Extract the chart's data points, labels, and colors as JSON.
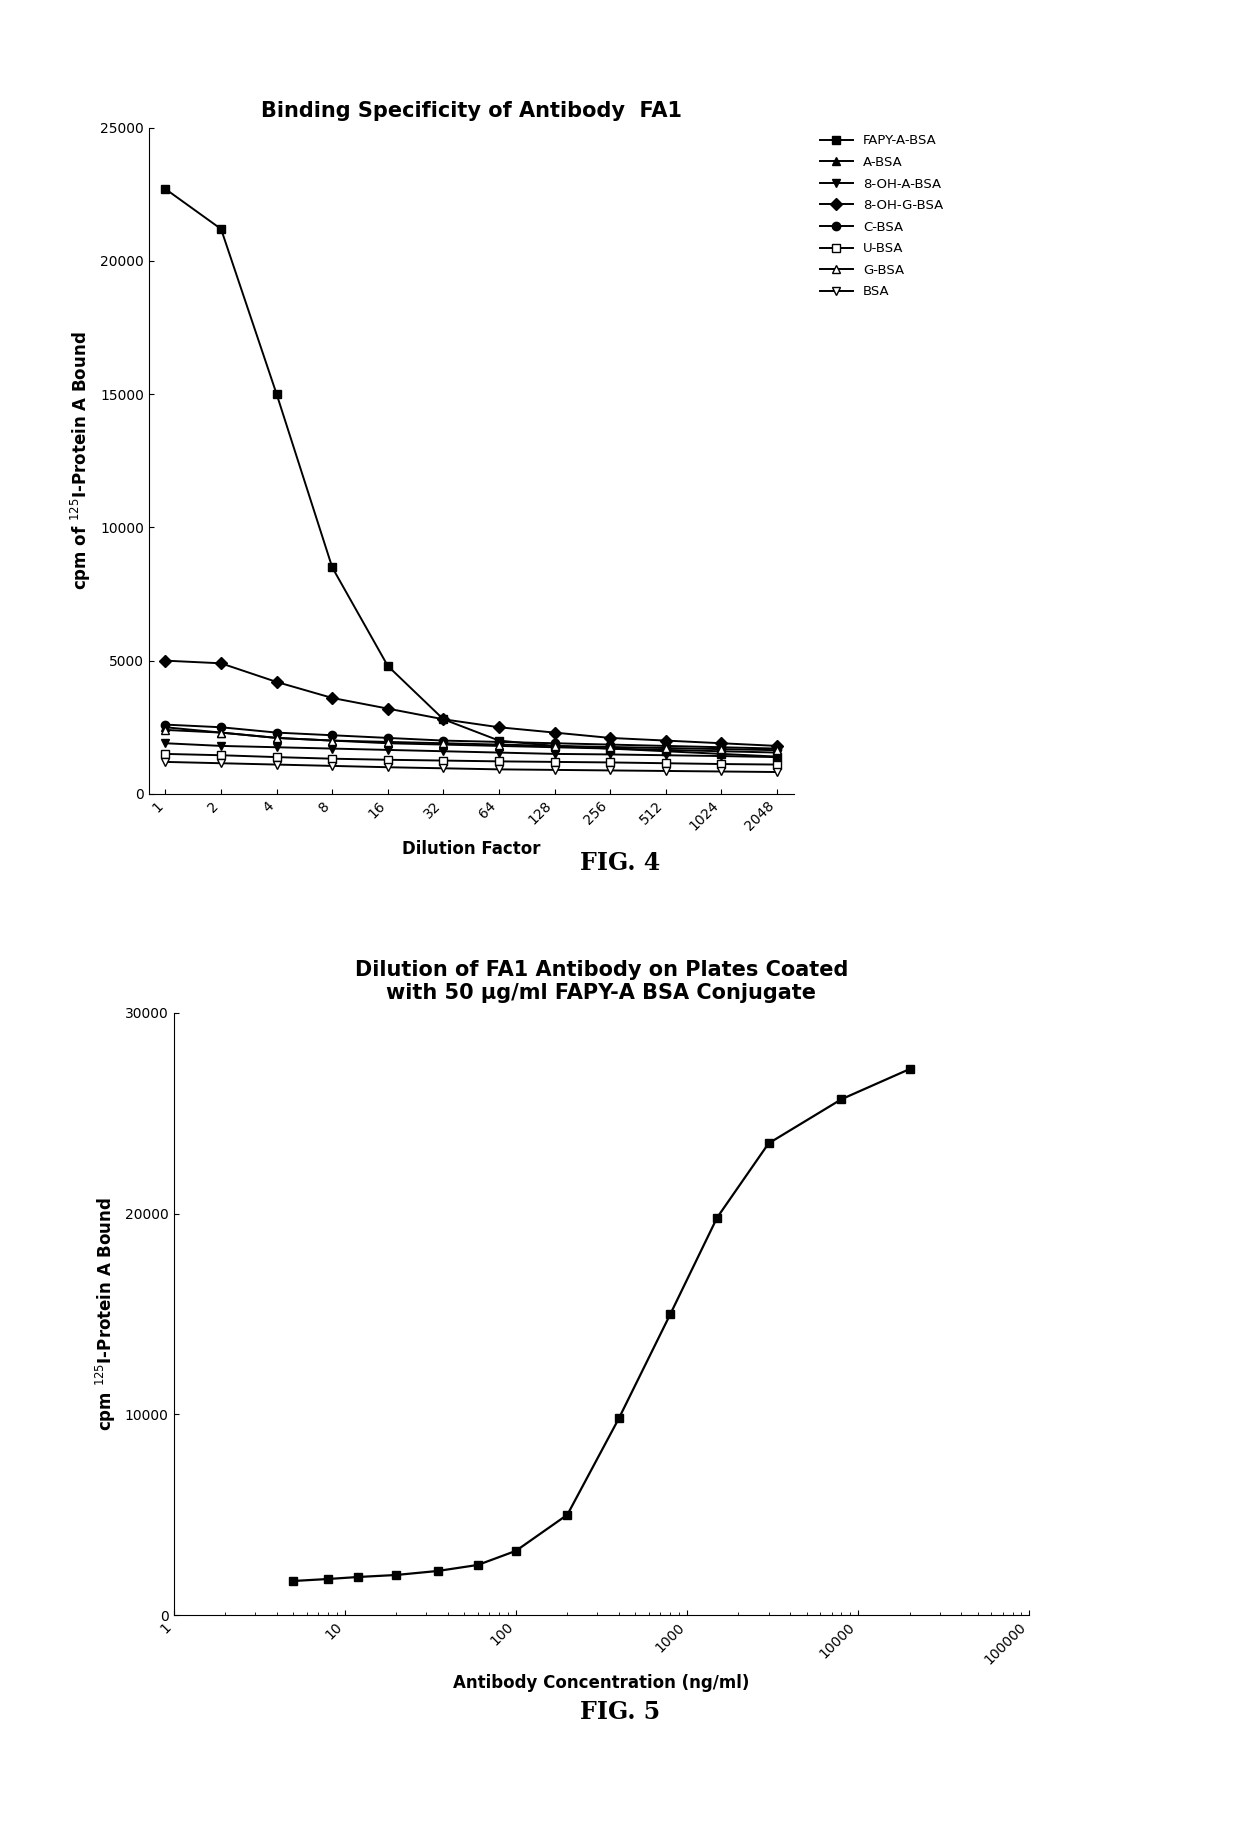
{
  "fig4": {
    "title": "Binding Specificity of Antibody  FA1",
    "xlabel": "Dilution Factor",
    "ylabel": "cpm of $^{125}$I-Protein A Bound",
    "x_values": [
      1,
      2,
      4,
      8,
      16,
      32,
      64,
      128,
      256,
      512,
      1024,
      2048
    ],
    "series_order": [
      "FAPY-A-BSA",
      "A-BSA",
      "8-OH-A-BSA",
      "8-OH-G-BSA",
      "C-BSA",
      "U-BSA",
      "G-BSA",
      "BSA"
    ],
    "series": {
      "FAPY-A-BSA": [
        22700,
        21200,
        15000,
        8500,
        4800,
        2800,
        2000,
        1800,
        1700,
        1600,
        1500,
        1400
      ],
      "A-BSA": [
        2500,
        2300,
        2100,
        2000,
        1900,
        1850,
        1800,
        1750,
        1700,
        1650,
        1600,
        1550
      ],
      "8-OH-A-BSA": [
        1900,
        1800,
        1750,
        1700,
        1650,
        1600,
        1550,
        1500,
        1480,
        1450,
        1420,
        1380
      ],
      "8-OH-G-BSA": [
        5000,
        4900,
        4200,
        3600,
        3200,
        2800,
        2500,
        2300,
        2100,
        2000,
        1900,
        1800
      ],
      "C-BSA": [
        2600,
        2500,
        2300,
        2200,
        2100,
        2000,
        1950,
        1900,
        1850,
        1800,
        1750,
        1700
      ],
      "U-BSA": [
        1500,
        1450,
        1380,
        1320,
        1280,
        1250,
        1220,
        1200,
        1180,
        1150,
        1120,
        1100
      ],
      "G-BSA": [
        2400,
        2300,
        2100,
        2000,
        1950,
        1900,
        1850,
        1800,
        1760,
        1720,
        1680,
        1640
      ],
      "BSA": [
        1200,
        1150,
        1100,
        1050,
        1000,
        960,
        920,
        900,
        880,
        860,
        840,
        820
      ]
    },
    "markers": {
      "FAPY-A-BSA": "s",
      "A-BSA": "^",
      "8-OH-A-BSA": "v",
      "8-OH-G-BSA": "D",
      "C-BSA": "o",
      "U-BSA": "s",
      "G-BSA": "^",
      "BSA": "v"
    },
    "markerfacecolors": {
      "FAPY-A-BSA": "black",
      "A-BSA": "black",
      "8-OH-A-BSA": "black",
      "8-OH-G-BSA": "black",
      "C-BSA": "black",
      "U-BSA": "white",
      "G-BSA": "white",
      "BSA": "white"
    },
    "ylim": [
      0,
      25000
    ],
    "yticks": [
      0,
      5000,
      10000,
      15000,
      20000,
      25000
    ],
    "ytick_labels": [
      "0",
      "5000",
      "10000",
      "15000",
      "20000",
      "25000"
    ],
    "fig_label": "FIG. 4"
  },
  "fig5": {
    "title": "Dilution of FA1 Antibody on Plates Coated\nwith 50 μg/ml FAPY-A BSA Conjugate",
    "xlabel": "Antibody Concentration (ng/ml)",
    "ylabel": "cpm $^{125}$I-Protein A Bound",
    "x_values": [
      5,
      8,
      12,
      20,
      35,
      60,
      100,
      200,
      400,
      800,
      1500,
      3000,
      8000,
      20000
    ],
    "y_values": [
      1700,
      1800,
      1900,
      2000,
      2200,
      2500,
      3200,
      5000,
      9800,
      15000,
      19800,
      23500,
      25700,
      27200
    ],
    "ylim": [
      0,
      30000
    ],
    "yticks": [
      0,
      10000,
      20000,
      30000
    ],
    "ytick_labels": [
      "0",
      "10000",
      "20000",
      "30000"
    ],
    "xlim": [
      1,
      100000
    ],
    "xtick_vals": [
      1,
      10,
      100,
      1000,
      10000,
      100000
    ],
    "xtick_labels": [
      "1",
      "10",
      "100",
      "1000",
      "10000",
      "100000"
    ],
    "fig_label": "FIG. 5"
  },
  "background_color": "#ffffff",
  "fontsize_title": 15,
  "fontsize_label": 12,
  "fontsize_tick": 10,
  "fontsize_figlabel": 17
}
